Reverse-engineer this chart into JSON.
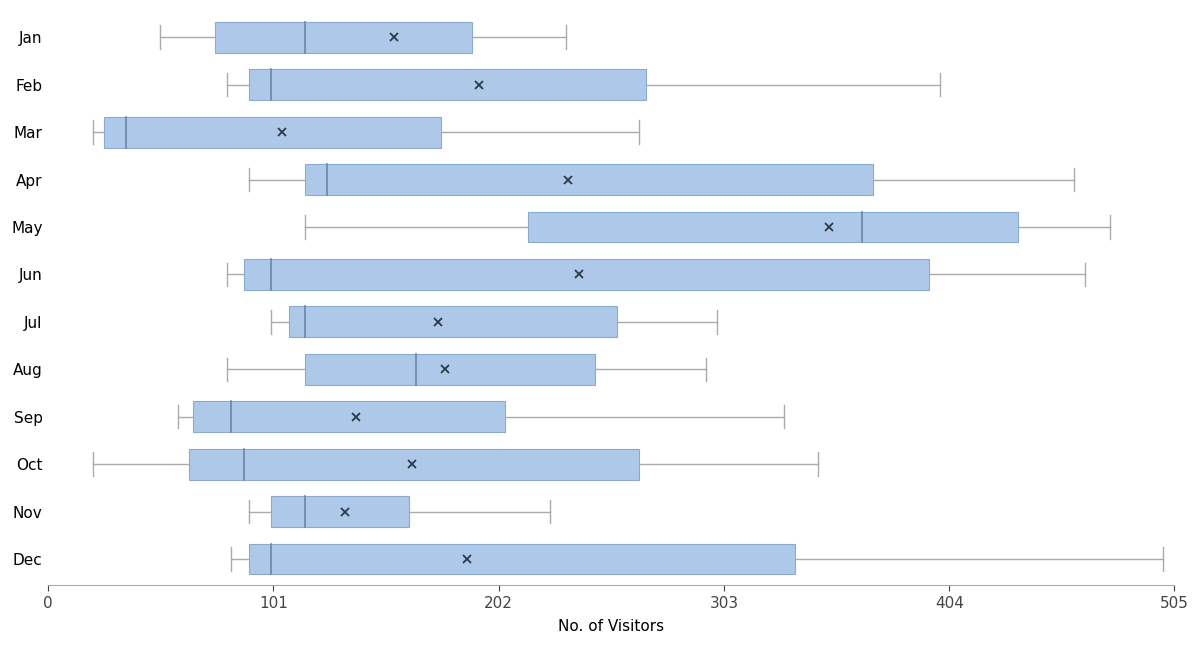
{
  "months": [
    "Jan",
    "Feb",
    "Mar",
    "Apr",
    "May",
    "Jun",
    "Jul",
    "Aug",
    "Sep",
    "Oct",
    "Nov",
    "Dec"
  ],
  "box_data": {
    "Jan": {
      "whisker_low": 50,
      "q1": 75,
      "median": 115,
      "q3": 190,
      "whisker_high": 232,
      "mean": 155
    },
    "Feb": {
      "whisker_low": 80,
      "q1": 90,
      "median": 100,
      "q3": 268,
      "whisker_high": 400,
      "mean": 193
    },
    "Mar": {
      "whisker_low": 20,
      "q1": 25,
      "median": 35,
      "q3": 176,
      "whisker_high": 265,
      "mean": 105
    },
    "Apr": {
      "whisker_low": 90,
      "q1": 115,
      "median": 125,
      "q3": 370,
      "whisker_high": 460,
      "mean": 233
    },
    "May": {
      "whisker_low": 115,
      "q1": 215,
      "median": 365,
      "q3": 435,
      "whisker_high": 476,
      "mean": 350
    },
    "Jun": {
      "whisker_low": 80,
      "q1": 88,
      "median": 100,
      "q3": 395,
      "whisker_high": 465,
      "mean": 238
    },
    "Jul": {
      "whisker_low": 100,
      "q1": 108,
      "median": 115,
      "q3": 255,
      "whisker_high": 300,
      "mean": 175
    },
    "Aug": {
      "whisker_low": 80,
      "q1": 115,
      "median": 165,
      "q3": 245,
      "whisker_high": 295,
      "mean": 178
    },
    "Sep": {
      "whisker_low": 58,
      "q1": 65,
      "median": 82,
      "q3": 205,
      "whisker_high": 330,
      "mean": 138
    },
    "Oct": {
      "whisker_low": 20,
      "q1": 63,
      "median": 88,
      "q3": 265,
      "whisker_high": 345,
      "mean": 163
    },
    "Nov": {
      "whisker_low": 90,
      "q1": 100,
      "median": 115,
      "q3": 162,
      "whisker_high": 225,
      "mean": 133
    },
    "Dec": {
      "whisker_low": 82,
      "q1": 90,
      "median": 100,
      "q3": 335,
      "whisker_high": 500,
      "mean": 188
    }
  },
  "xlim": [
    0,
    505
  ],
  "xticks": [
    0,
    101,
    202,
    303,
    404,
    505
  ],
  "xlabel": "No. of Visitors",
  "box_color": "#adc8e8",
  "box_edge_color": "#8aabcc",
  "median_color": "#6688aa",
  "whisker_color": "#aaaaaa",
  "mean_marker": "x",
  "mean_color": "#2a3a4a",
  "background_color": "#ffffff",
  "figsize": [
    12.0,
    6.45
  ],
  "dpi": 100
}
